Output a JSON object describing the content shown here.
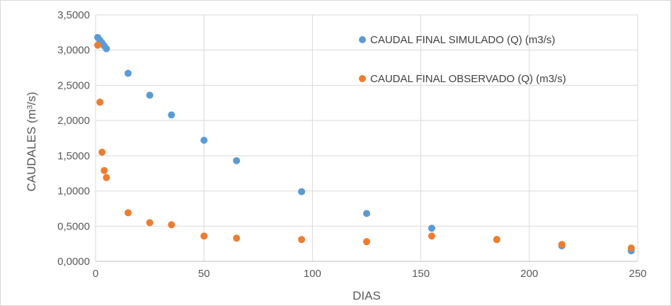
{
  "chart_data": {
    "type": "scatter",
    "xlabel": "DIAS",
    "ylabel": "CAUDALES (m³/s)",
    "xlim": [
      0,
      250
    ],
    "ylim": [
      0,
      3.5
    ],
    "x_ticks": [
      0,
      50,
      100,
      150,
      200,
      250
    ],
    "y_ticks": [
      0,
      0.5,
      1,
      1.5,
      2,
      2.5,
      3,
      3.5
    ],
    "x_tick_labels": [
      "0",
      "50",
      "100",
      "150",
      "200",
      "250"
    ],
    "y_tick_labels": [
      "0,0000",
      "0,5000",
      "1,0000",
      "1,5000",
      "2,0000",
      "2,5000",
      "3,0000",
      "3,5000"
    ],
    "grid": true,
    "legend_position": "top-right",
    "series": [
      {
        "name": "CAUDAL FINAL SIMULADO (Q) (m3/s)",
        "color": "#5b9bd5",
        "points": [
          [
            1,
            3.18
          ],
          [
            2,
            3.14
          ],
          [
            3,
            3.1
          ],
          [
            4,
            3.06
          ],
          [
            5,
            3.02
          ],
          [
            15,
            2.67
          ],
          [
            25,
            2.36
          ],
          [
            35,
            2.08
          ],
          [
            50,
            1.72
          ],
          [
            65,
            1.43
          ],
          [
            95,
            0.99
          ],
          [
            125,
            0.68
          ],
          [
            155,
            0.47
          ],
          [
            185,
            0.31
          ],
          [
            215,
            0.22
          ],
          [
            247,
            0.15
          ]
        ]
      },
      {
        "name": "CAUDAL FINAL OBSERVADO (Q) (m3/s)",
        "color": "#ed7d31",
        "points": [
          [
            1,
            3.07
          ],
          [
            2,
            2.26
          ],
          [
            3,
            1.55
          ],
          [
            4,
            1.29
          ],
          [
            5,
            1.19
          ],
          [
            15,
            0.69
          ],
          [
            25,
            0.55
          ],
          [
            35,
            0.52
          ],
          [
            50,
            0.36
          ],
          [
            65,
            0.33
          ],
          [
            95,
            0.31
          ],
          [
            125,
            0.28
          ],
          [
            155,
            0.36
          ],
          [
            185,
            0.31
          ],
          [
            215,
            0.24
          ],
          [
            247,
            0.19
          ]
        ]
      }
    ]
  }
}
